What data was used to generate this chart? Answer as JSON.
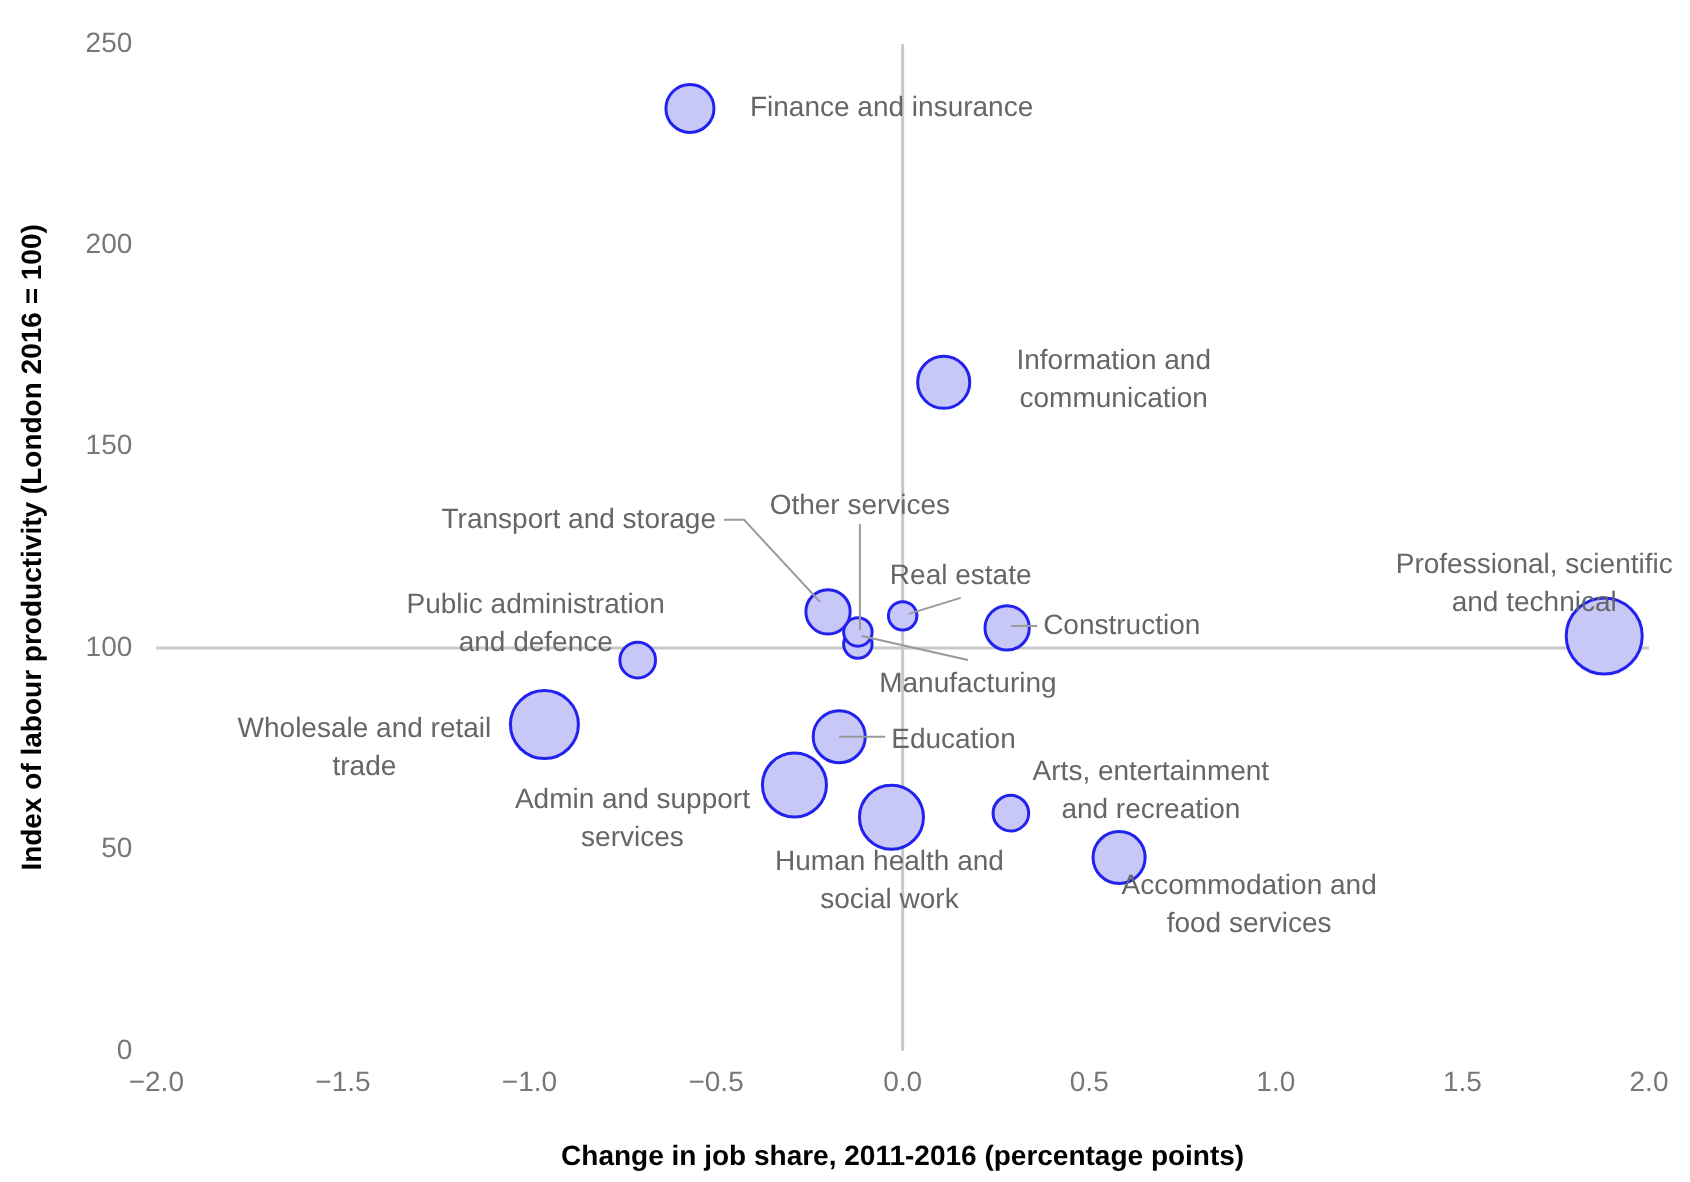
{
  "chart_data": {
    "type": "bubble",
    "xlabel": "Change in job share, 2011-2016 (percentage points)",
    "ylabel": "Index of labour productivity (London 2016 = 100)",
    "series": [
      {
        "name": "Finance and insurance",
        "color": "#c8c8f8",
        "x": [
          -0.57
        ],
        "values": [
          234
        ],
        "sizes": [
          0.4
        ]
      },
      {
        "name": "Information and\ncommunication",
        "color": "#c8c8f8",
        "x": [
          0.11
        ],
        "values": [
          166
        ],
        "sizes": [
          0.47
        ]
      },
      {
        "name": "Transport and storage",
        "color": "#c8c8f8",
        "x": [
          -0.2
        ],
        "values": [
          109
        ],
        "sizes": [
          0.34
        ]
      },
      {
        "name": "Other services",
        "color": "#c8c8f8",
        "x": [
          -0.12
        ],
        "values": [
          104
        ],
        "sizes": [
          0.14
        ]
      },
      {
        "name": "Manufacturing",
        "color": "#c8c8f8",
        "x": [
          -0.12
        ],
        "values": [
          101
        ],
        "sizes": [
          0.14
        ]
      },
      {
        "name": "Real estate",
        "color": "#c8c8f8",
        "x": [
          0.0
        ],
        "values": [
          108
        ],
        "sizes": [
          0.14
        ]
      },
      {
        "name": "Construction",
        "color": "#c8c8f8",
        "x": [
          0.28
        ],
        "values": [
          105
        ],
        "sizes": [
          0.34
        ]
      },
      {
        "name": "Public administration\nand defence",
        "color": "#c8c8f8",
        "x": [
          -0.71
        ],
        "values": [
          97
        ],
        "sizes": [
          0.22
        ]
      },
      {
        "name": "Professional, scientific\nand technical",
        "color": "#c8c8f8",
        "x": [
          1.88
        ],
        "values": [
          103
        ],
        "sizes": [
          1
        ]
      },
      {
        "name": "Wholesale and retail\ntrade",
        "color": "#c8c8f8",
        "x": [
          -0.96
        ],
        "values": [
          81
        ],
        "sizes": [
          0.8
        ]
      },
      {
        "name": "Education",
        "color": "#c8c8f8",
        "x": [
          -0.17
        ],
        "values": [
          78
        ],
        "sizes": [
          0.47
        ]
      },
      {
        "name": "Admin and support\nservices",
        "color": "#c8c8f8",
        "x": [
          -0.29
        ],
        "values": [
          66
        ],
        "sizes": [
          0.71
        ]
      },
      {
        "name": "Human health and\nsocial work",
        "color": "#c8c8f8",
        "x": [
          -0.03
        ],
        "values": [
          58
        ],
        "sizes": [
          0.71
        ]
      },
      {
        "name": "Arts, entertainment\nand recreation",
        "color": "#c8c8f8",
        "x": [
          0.29
        ],
        "values": [
          59
        ],
        "sizes": [
          0.22
        ]
      },
      {
        "name": "Accommodation and\nfood services",
        "color": "#c8c8f8",
        "x": [
          0.58
        ],
        "values": [
          48
        ],
        "sizes": [
          0.47
        ]
      }
    ],
    "xlim": [
      -2,
      2
    ],
    "xticks": [
      {
        "value": -2,
        "label": "−2.0"
      },
      {
        "value": -1.5,
        "label": "−1.5"
      },
      {
        "value": -1,
        "label": "−1.0"
      },
      {
        "value": -0.5,
        "label": "−0.5"
      },
      {
        "value": 0,
        "label": "0.0"
      },
      {
        "value": 0.5,
        "label": "0.5"
      },
      {
        "value": 1,
        "label": "1.0"
      },
      {
        "value": 1.5,
        "label": "1.5"
      },
      {
        "value": 2,
        "label": "2.0"
      }
    ],
    "ylim": [
      0,
      250
    ],
    "yticks": [
      0,
      50,
      100,
      150,
      200,
      250
    ],
    "ref_lines": [
      {
        "axis": "x",
        "value": 0
      },
      {
        "axis": "y",
        "value": 100
      }
    ],
    "grid": false,
    "legend": false
  }
}
